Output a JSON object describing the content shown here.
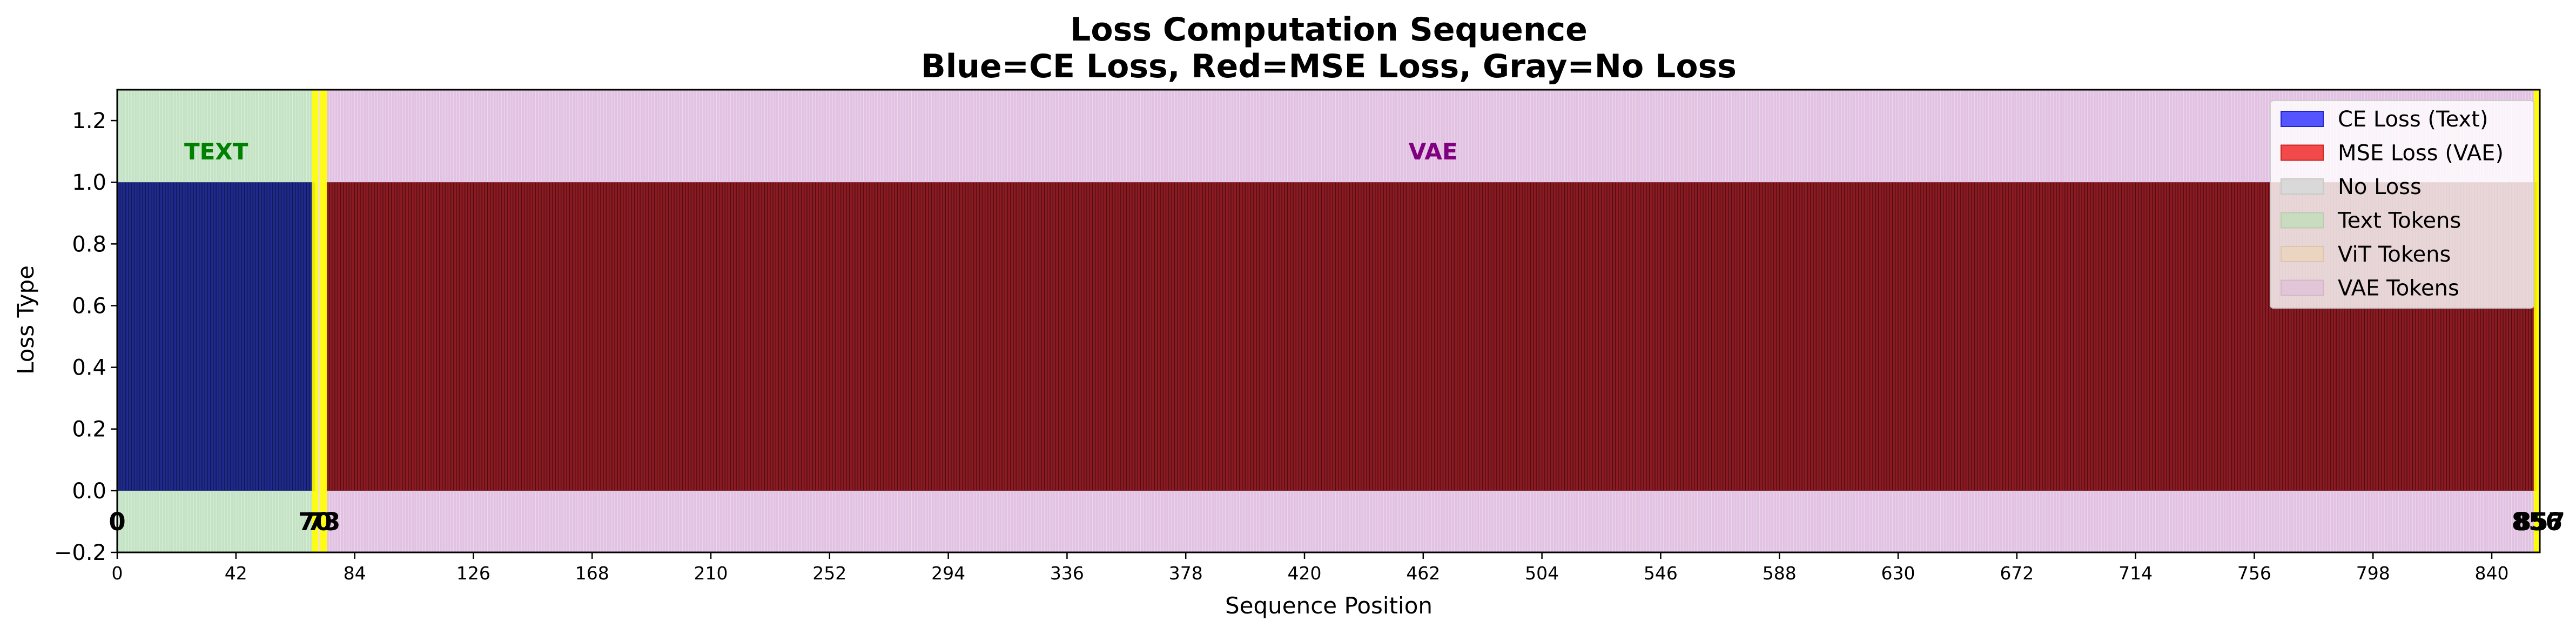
{
  "chart_data": {
    "type": "bar",
    "title": "Loss Computation Sequence",
    "subtitle": "Blue=CE Loss, Red=MSE Loss, Gray=No Loss",
    "xlabel": "Sequence Position",
    "ylabel": "Loss Type",
    "xlim": [
      0,
      857
    ],
    "ylim": [
      -0.2,
      1.3
    ],
    "yticks": [
      "−0.2",
      "0.0",
      "0.2",
      "0.4",
      "0.6",
      "0.8",
      "1.0",
      "1.2"
    ],
    "xticks": [
      "0",
      "42",
      "84",
      "126",
      "168",
      "210",
      "252",
      "294",
      "336",
      "378",
      "420",
      "462",
      "504",
      "546",
      "588",
      "630",
      "672",
      "714",
      "756",
      "798",
      "840"
    ],
    "grid": false,
    "legend_position": "upper right",
    "series": [
      {
        "name": "CE Loss (Text)",
        "color": "#1f2a8c",
        "ranges": [
          [
            0,
            70
          ]
        ],
        "value": 1.0
      },
      {
        "name": "MSE Loss (VAE)",
        "color": "#8b1a22",
        "ranges": [
          [
            74,
            856
          ]
        ],
        "value": 1.0
      },
      {
        "name": "No Loss",
        "color": "#bcbcbc",
        "ranges": [
          [
            70,
            74
          ],
          [
            856,
            857
          ]
        ],
        "value": 0.0
      }
    ],
    "regions": [
      {
        "name": "Text Tokens",
        "label": "TEXT",
        "range": [
          0,
          70
        ],
        "color": "#c4e3c4",
        "label_color": "#008000"
      },
      {
        "name": "ViT Tokens",
        "label": "",
        "range": [
          70,
          74
        ],
        "color": "#f2e0cc",
        "label_color": "#ff8c00"
      },
      {
        "name": "VAE Tokens",
        "label": "VAE",
        "range": [
          74,
          857
        ],
        "color": "#e2c2e2",
        "label_color": "#800080"
      }
    ],
    "highlight_positions": [
      70,
      73,
      856,
      857
    ],
    "highlight_color": "#ffff00",
    "markers": [
      {
        "x": 0,
        "text": "0"
      },
      {
        "x": 70,
        "text": "70"
      },
      {
        "x": 73,
        "text": "73"
      },
      {
        "x": 856,
        "text": "856"
      },
      {
        "x": 857,
        "text": "857"
      }
    ],
    "legend": [
      {
        "label": "CE Loss (Text)",
        "color": "#5555ff",
        "edge": "#2222cc"
      },
      {
        "label": "MSE Loss (VAE)",
        "color": "#f24a4a",
        "edge": "#cc2222"
      },
      {
        "label": "No Loss",
        "color": "#d9d9d9",
        "edge": "#c8c8c8"
      },
      {
        "label": "Text Tokens",
        "color": "#c9dcc0",
        "edge": "#b8ccb0"
      },
      {
        "label": "ViT Tokens",
        "color": "#ecd5c0",
        "edge": "#dcc5b0"
      },
      {
        "label": "VAE Tokens",
        "color": "#e2c6d8",
        "edge": "#d2b6c8"
      }
    ]
  }
}
